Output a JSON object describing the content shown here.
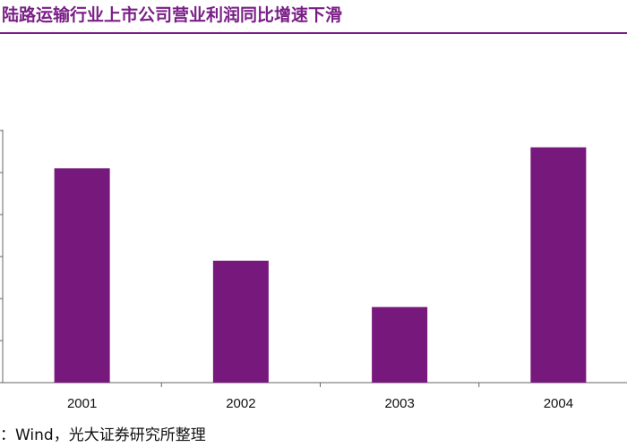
{
  "title": "陆路运输行业上市公司营业利润同比增速下滑",
  "source": "：Wind，光大证券研究所整理",
  "colors": {
    "accent": "#7a1f86",
    "bar": "#77197c",
    "axis": "#666666"
  },
  "chart_data": {
    "type": "bar",
    "categories": [
      "2001",
      "2002",
      "2003",
      "2004"
    ],
    "values": [
      5.1,
      2.9,
      1.8,
      5.6
    ],
    "ylim": [
      0,
      8
    ],
    "grid": false,
    "legend": "none",
    "title": "陆路运输行业上市公司营业利润同比增速下滑",
    "xlabel": "",
    "ylabel": ""
  }
}
